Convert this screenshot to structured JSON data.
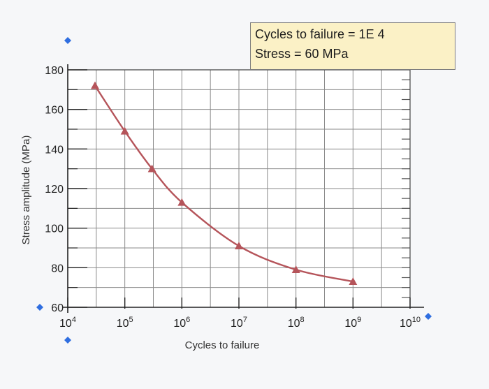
{
  "info_box": {
    "line1": "Cycles to failure = 1E 4",
    "line2": "Stress = 60 MPa"
  },
  "colors": {
    "curve": "#b5545a",
    "marker": "#b5545a",
    "axis_handle": "#2f6ee0",
    "grid": "#8a8a8a",
    "box_fill": "#fbf1c6"
  },
  "chart_data": {
    "type": "line",
    "x_scale": "log",
    "xlabel": "Cycles to failure",
    "ylabel": "Stress amplitude (MPa)",
    "xlim": [
      10000,
      10000000000
    ],
    "ylim": [
      60,
      180
    ],
    "x_ticks": [
      {
        "base": "10",
        "exp": "4"
      },
      {
        "base": "10",
        "exp": "5"
      },
      {
        "base": "10",
        "exp": "6"
      },
      {
        "base": "10",
        "exp": "7"
      },
      {
        "base": "10",
        "exp": "8"
      },
      {
        "base": "10",
        "exp": "9"
      },
      {
        "base": "10",
        "exp": "10"
      }
    ],
    "y_ticks": [
      "60",
      "80",
      "100",
      "120",
      "140",
      "160",
      "180"
    ],
    "y_tick_values": [
      60,
      80,
      100,
      120,
      140,
      160,
      180
    ],
    "grid": true,
    "series": [
      {
        "x": [
          30000,
          100000,
          300000,
          1000000,
          10000000,
          100000000,
          1000000000
        ],
        "y": [
          172,
          149,
          130,
          113,
          91,
          79,
          73
        ]
      }
    ]
  }
}
